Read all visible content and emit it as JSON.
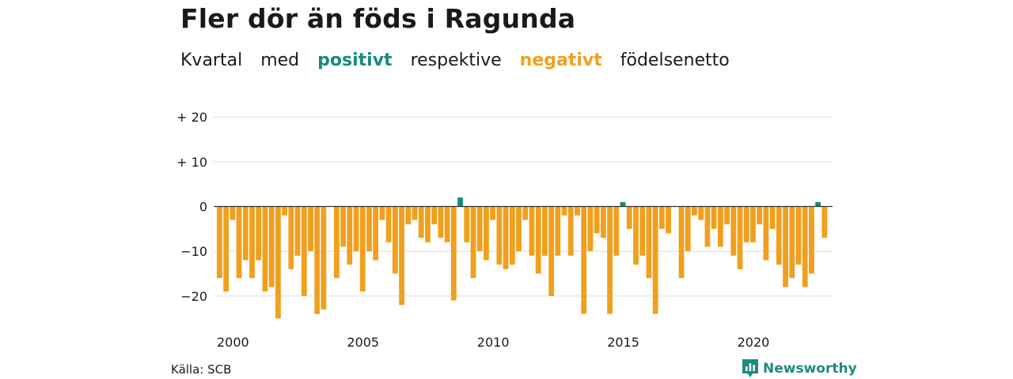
{
  "title": "Fler dör än föds i Ragunda",
  "subtitle": {
    "part1": "Kvartal",
    "part2": "med",
    "positive_word": "positivt",
    "part3": "respektive",
    "negative_word": "negativt",
    "part4": "födelsenetto"
  },
  "source": "Källa: SCB",
  "brand": {
    "name": "Newsworthy",
    "icon": "newsworthy-logo-icon",
    "color": "#1f8a80"
  },
  "colors": {
    "positive": "#1a8a7e",
    "negative": "#f0a01e",
    "grid": "#dddddd",
    "zero": "#333333"
  },
  "chart_data": {
    "type": "bar",
    "x_start": 2000,
    "periods_per_year": 4,
    "x_ticks": [
      "2000",
      "2005",
      "2010",
      "2015",
      "2020"
    ],
    "y_ticks": [
      {
        "value": 20,
        "label": "+ 20"
      },
      {
        "value": 10,
        "label": "+ 10"
      },
      {
        "value": 0,
        "label": "0"
      },
      {
        "value": -10,
        "label": "−10"
      },
      {
        "value": -20,
        "label": "−20"
      }
    ],
    "ylim": [
      -25,
      20
    ],
    "grid": true,
    "values": [
      -16,
      -19,
      -3,
      -16,
      -12,
      -16,
      -12,
      -19,
      -18,
      -25,
      -2,
      -14,
      -11,
      -20,
      -10,
      -24,
      -23,
      0,
      -16,
      -9,
      -13,
      -10,
      -19,
      -10,
      -12,
      -3,
      -8,
      -15,
      -22,
      -4,
      -3,
      -7,
      -8,
      -4,
      -7,
      -8,
      -21,
      2,
      -8,
      -16,
      -10,
      -12,
      -3,
      -13,
      -14,
      -13,
      -10,
      -3,
      -11,
      -15,
      -11,
      -20,
      -11,
      -2,
      -11,
      -2,
      -24,
      -10,
      -6,
      -7,
      -24,
      -11,
      1,
      -5,
      -13,
      -11,
      -16,
      -24,
      -5,
      -6,
      0,
      -16,
      -10,
      -2,
      -3,
      -9,
      -5,
      -9,
      -4,
      -11,
      -14,
      -8,
      -8,
      -4,
      -12,
      -5,
      -13,
      -18,
      -16,
      -13,
      -18,
      -15,
      1,
      -7
    ]
  }
}
